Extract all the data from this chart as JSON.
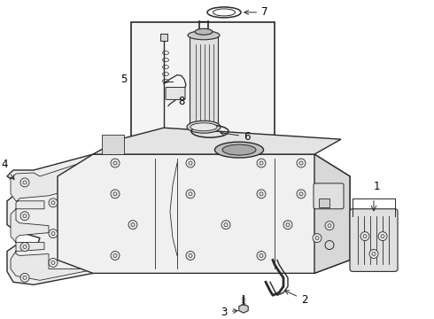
{
  "bg_color": "#ffffff",
  "line_color": "#2a2a2a",
  "label_color": "#000000",
  "label_fontsize": 8.5,
  "fig_width": 4.9,
  "fig_height": 3.6,
  "dpi": 100
}
